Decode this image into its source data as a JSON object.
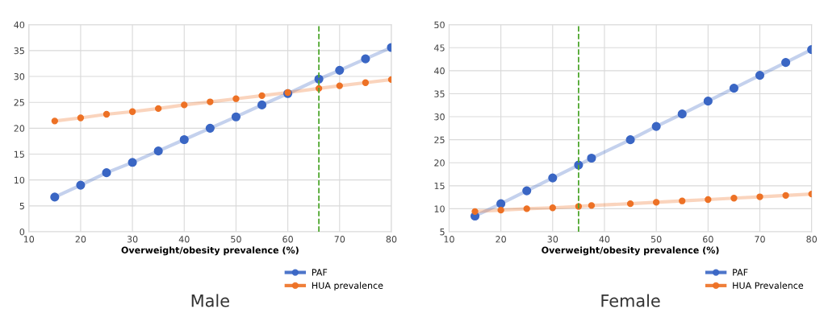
{
  "chart_data": [
    {
      "type": "line",
      "title": "Male",
      "xlabel": "Overweight/obesity prevalence (%)",
      "xlim": [
        10,
        80
      ],
      "xticks": [
        10,
        20,
        30,
        40,
        50,
        60,
        70,
        80
      ],
      "ylim": [
        0,
        40
      ],
      "yticks": [
        0,
        5,
        10,
        15,
        20,
        25,
        30,
        35,
        40
      ],
      "grid": true,
      "legend": "bottom right",
      "marker": "circle",
      "line_style": "solid",
      "x": [
        15,
        20,
        25,
        30,
        35,
        40,
        45,
        50,
        55,
        60,
        66,
        70,
        75,
        80
      ],
      "series": [
        {
          "name": "PAF",
          "color": "#3a66c4",
          "values": [
            6.7,
            9.0,
            11.4,
            13.4,
            15.6,
            17.8,
            20.0,
            22.2,
            24.5,
            26.7,
            29.5,
            31.2,
            33.4,
            35.6
          ]
        },
        {
          "name": "HUA prevalence",
          "color": "#ed7125",
          "values": [
            21.4,
            22.0,
            22.7,
            23.2,
            23.8,
            24.5,
            25.1,
            25.7,
            26.3,
            26.9,
            27.7,
            28.2,
            28.8,
            29.4
          ]
        }
      ],
      "ref_lines": [
        {
          "axis": "x",
          "value": 66,
          "color": "#4ea72e",
          "line_style": "dashed"
        }
      ]
    },
    {
      "type": "line",
      "title": "Female",
      "xlabel": "Overweight/obesity prevalence (%)",
      "xlim": [
        10,
        80
      ],
      "xticks": [
        10,
        20,
        30,
        40,
        50,
        60,
        70,
        80
      ],
      "ylim": [
        5,
        50
      ],
      "yticks": [
        5,
        10,
        15,
        20,
        25,
        30,
        35,
        40,
        45,
        50
      ],
      "grid": true,
      "legend": "bottom right",
      "marker": "circle",
      "line_style": "solid",
      "x": [
        15,
        20,
        25,
        30,
        35,
        37.5,
        45,
        50,
        55,
        60,
        65,
        70,
        75,
        80
      ],
      "series": [
        {
          "name": "PAF",
          "color": "#3a66c4",
          "values": [
            8.4,
            11.1,
            13.9,
            16.7,
            19.5,
            21.0,
            25.0,
            27.9,
            30.6,
            33.4,
            36.2,
            39.0,
            41.8,
            44.6
          ]
        },
        {
          "name": "HUA Prevalence",
          "color": "#ed7125",
          "values": [
            9.4,
            9.7,
            10.0,
            10.2,
            10.5,
            10.7,
            11.1,
            11.4,
            11.7,
            12.0,
            12.3,
            12.6,
            12.9,
            13.2
          ]
        }
      ],
      "ref_lines": [
        {
          "axis": "x",
          "value": 35,
          "color": "#4ea72e",
          "line_style": "dashed"
        }
      ]
    }
  ]
}
